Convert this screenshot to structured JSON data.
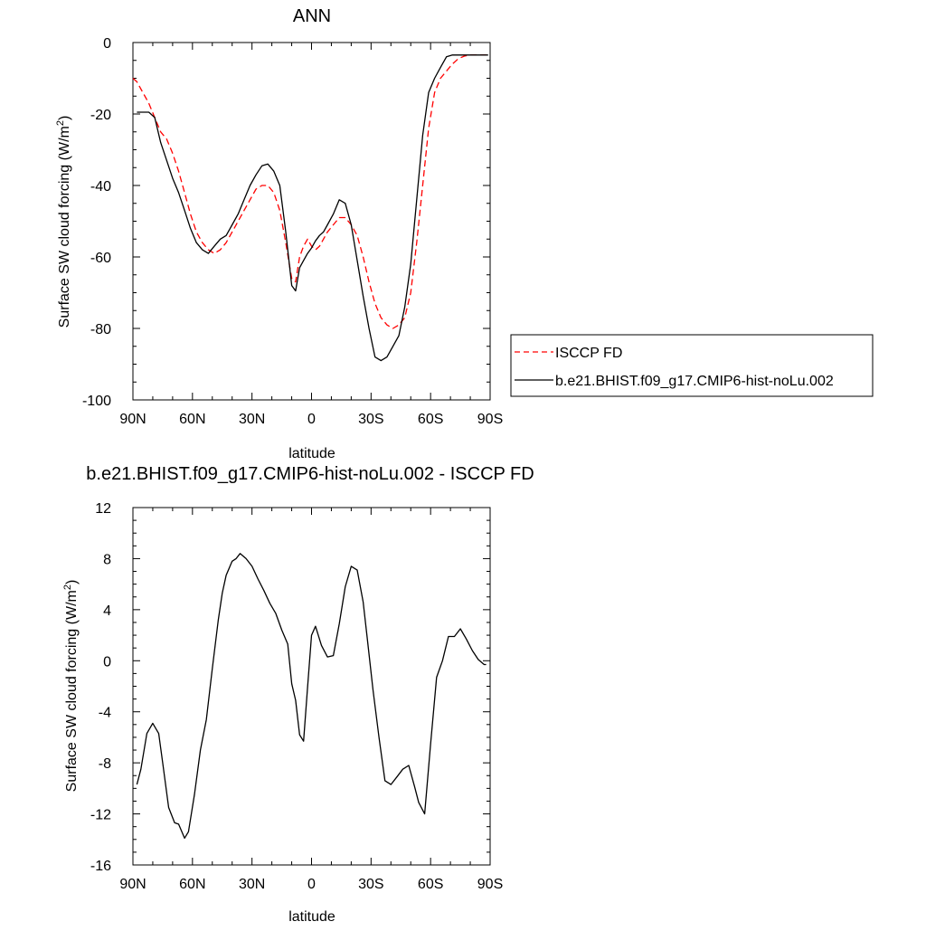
{
  "chart_data": [
    {
      "type": "line",
      "title": "ANN",
      "xlabel": "latitude",
      "ylabel": "Surface SW cloud forcing (W/m",
      "ylabel_sup": "2",
      "ylabel_tail": ")",
      "x_ticks": [
        {
          "value": -90,
          "label": "90N"
        },
        {
          "value": -60,
          "label": "60N"
        },
        {
          "value": -30,
          "label": "30N"
        },
        {
          "value": 0,
          "label": "0"
        },
        {
          "value": 30,
          "label": "30S"
        },
        {
          "value": 60,
          "label": "60S"
        },
        {
          "value": 90,
          "label": "90S"
        }
      ],
      "xlim": [
        -90,
        90
      ],
      "ylim": [
        -100,
        0
      ],
      "y_ticks": [
        0,
        -20,
        -40,
        -60,
        -80,
        -100
      ],
      "y_minor_step": 5,
      "legend_position": "right",
      "series": [
        {
          "name": "ISCCP FD",
          "color": "#ff0000",
          "dash": "dashed",
          "x": [
            -90,
            -88,
            -85,
            -82,
            -79,
            -76,
            -73,
            -70,
            -67,
            -64,
            -61,
            -58,
            -55,
            -52,
            -49,
            -46,
            -43,
            -40,
            -37,
            -34,
            -31,
            -28,
            -25,
            -22,
            -19,
            -16,
            -13,
            -10,
            -8,
            -6,
            -4,
            -2,
            0,
            2,
            4,
            6,
            8,
            11,
            14,
            17,
            20,
            23,
            26,
            29,
            32,
            35,
            38,
            41,
            44,
            47,
            50,
            53,
            56,
            59,
            62,
            65,
            68,
            71,
            74,
            77,
            80,
            83,
            86,
            89
          ],
          "values": [
            -10,
            -11,
            -14,
            -17,
            -21,
            -25,
            -27,
            -31,
            -36,
            -42,
            -48,
            -53,
            -56,
            -58,
            -59,
            -58,
            -56,
            -53,
            -50,
            -47,
            -44,
            -41,
            -40,
            -40,
            -42,
            -47,
            -56,
            -66,
            -67,
            -60,
            -57,
            -55,
            -57,
            -58,
            -57,
            -55,
            -53,
            -51,
            -49,
            -49,
            -51,
            -54,
            -60,
            -67,
            -73,
            -77,
            -79,
            -80,
            -79,
            -77,
            -70,
            -56,
            -40,
            -24,
            -14,
            -10,
            -8,
            -6,
            -4.5,
            -3.8,
            -3.5,
            -3.5,
            -3.5,
            -3.5
          ]
        },
        {
          "name": "b.e21.BHIST.f09_g17.CMIP6-hist-noLu.002",
          "color": "#000000",
          "dash": "solid",
          "x": [
            -88,
            -85,
            -82,
            -79,
            -76,
            -73,
            -70,
            -67,
            -64,
            -61,
            -58,
            -55,
            -52,
            -49,
            -46,
            -43,
            -40,
            -37,
            -34,
            -31,
            -28,
            -25,
            -22,
            -19,
            -16,
            -13,
            -10,
            -8,
            -6,
            -4,
            -2,
            0,
            2,
            4,
            6,
            8,
            11,
            14,
            17,
            20,
            23,
            26,
            29,
            32,
            35,
            38,
            41,
            44,
            47,
            50,
            53,
            56,
            59,
            62,
            65,
            68,
            71,
            74,
            77,
            80,
            83,
            86,
            89
          ],
          "values": [
            -19.5,
            -19.5,
            -19.5,
            -21,
            -28,
            -33,
            -38,
            -42,
            -47,
            -52,
            -56,
            -58,
            -59,
            -57,
            -55,
            -54,
            -51,
            -48,
            -44,
            -40,
            -37,
            -34.5,
            -34,
            -36,
            -40,
            -53,
            -68,
            -69.5,
            -63,
            -61,
            -59,
            -57.5,
            -55.5,
            -54,
            -53,
            -51,
            -48,
            -44,
            -45,
            -51,
            -61,
            -71,
            -80,
            -88,
            -89,
            -88,
            -85,
            -82,
            -74,
            -62,
            -44,
            -26,
            -14,
            -10,
            -7,
            -4,
            -3.5,
            -3.5,
            -3.5,
            -3.5,
            -3.5,
            -3.5,
            -3.5
          ]
        }
      ]
    },
    {
      "type": "line",
      "title": "b.e21.BHIST.f09_g17.CMIP6-hist-noLu.002 - ISCCP FD",
      "xlabel": "latitude",
      "ylabel": "Surface SW cloud forcing (W/m",
      "ylabel_sup": "2",
      "ylabel_tail": ")",
      "x_ticks": [
        {
          "value": -90,
          "label": "90N"
        },
        {
          "value": -60,
          "label": "60N"
        },
        {
          "value": -30,
          "label": "30N"
        },
        {
          "value": 0,
          "label": "0"
        },
        {
          "value": 30,
          "label": "30S"
        },
        {
          "value": 60,
          "label": "60S"
        },
        {
          "value": 90,
          "label": "90S"
        }
      ],
      "xlim": [
        -90,
        90
      ],
      "ylim": [
        -16,
        12
      ],
      "y_ticks": [
        12,
        8,
        4,
        0,
        -4,
        -8,
        -12,
        -16
      ],
      "y_minor_step": 1,
      "series": [
        {
          "name": "",
          "color": "#000000",
          "dash": "solid",
          "x": [
            -88,
            -86,
            -83,
            -80,
            -77,
            -75,
            -72,
            -69,
            -67,
            -64,
            -62,
            -59,
            -56,
            -53,
            -50,
            -47,
            -45,
            -43,
            -40,
            -38,
            -36,
            -33,
            -30,
            -27,
            -24,
            -21,
            -18,
            -15,
            -12,
            -10,
            -8,
            -6,
            -4,
            -2,
            0,
            2,
            5,
            8,
            11,
            14,
            17,
            20,
            23,
            26,
            28,
            31,
            34,
            37,
            40,
            43,
            46,
            49,
            52,
            54,
            57,
            60,
            63,
            66,
            69,
            72,
            75,
            78,
            81,
            84,
            87,
            88
          ],
          "values": [
            -9.7,
            -8.5,
            -5.7,
            -4.9,
            -5.7,
            -8,
            -11.5,
            -12.7,
            -12.8,
            -13.9,
            -13.4,
            -10.5,
            -7,
            -4.6,
            -0.6,
            3.2,
            5.3,
            6.7,
            7.8,
            8,
            8.4,
            8,
            7.4,
            6.4,
            5.5,
            4.5,
            3.7,
            2.4,
            1.3,
            -1.8,
            -3.1,
            -5.8,
            -6.3,
            -2.1,
            2,
            2.7,
            1.2,
            0.3,
            0.4,
            2.9,
            5.8,
            7.4,
            7.1,
            4.6,
            1.9,
            -2.3,
            -6,
            -9.4,
            -9.7,
            -9.1,
            -8.5,
            -8.2,
            -9.9,
            -11.1,
            -12,
            -6.5,
            -1.3,
            0,
            1.9,
            1.9,
            2.5,
            1.7,
            0.8,
            0.1,
            -0.3,
            -0.3
          ]
        }
      ]
    }
  ]
}
